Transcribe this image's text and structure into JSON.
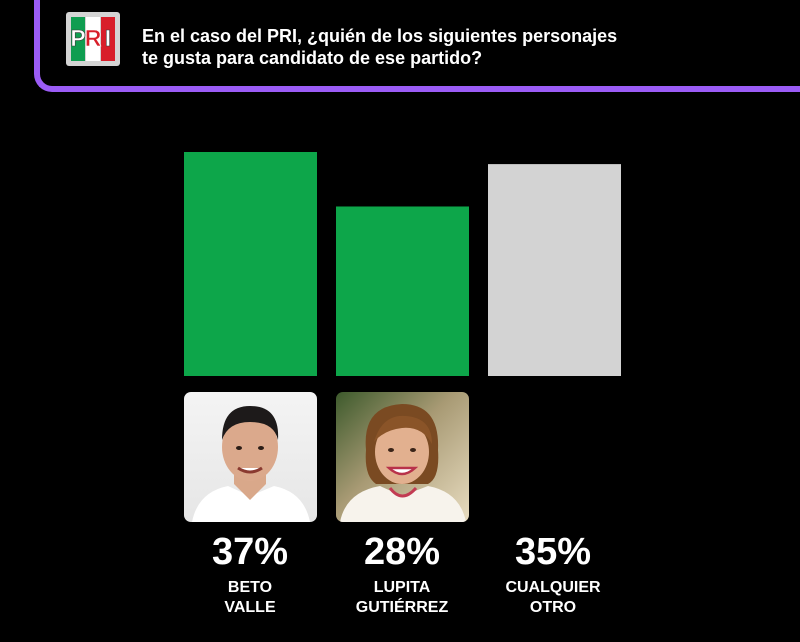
{
  "header": {
    "title_line1": "En el caso del PRI, ¿quién de los siguientes personajes",
    "title_line2": "te gusta para candidato de ese partido?",
    "logo_letters": [
      "P",
      "R",
      "I"
    ]
  },
  "colors": {
    "accent_purple": "#9b5cf6",
    "bar_green": "#0da64a",
    "bar_gray": "#d3d3d3",
    "background": "#000000"
  },
  "candidates": [
    {
      "pct": "37%",
      "name_line1": "BETO",
      "name_line2": "VALLE",
      "has_photo": true
    },
    {
      "pct": "28%",
      "name_line1": "LUPITA",
      "name_line2": "GUTIÉRREZ",
      "has_photo": true
    },
    {
      "pct": "35%",
      "name_line1": "CUALQUIER",
      "name_line2": "OTRO",
      "has_photo": false
    }
  ],
  "chart_data": {
    "type": "bar",
    "title": "En el caso del PRI, ¿quién de los siguientes personajes te gusta para candidato de ese partido?",
    "categories": [
      "BETO VALLE",
      "LUPITA GUTIÉRREZ",
      "CUALQUIER OTRO"
    ],
    "values": [
      37,
      28,
      35
    ],
    "unit": "%",
    "bar_colors": [
      "#0da64a",
      "#0da64a",
      "#d3d3d3"
    ],
    "ylim": [
      0,
      37
    ],
    "grid": false,
    "legend": "none"
  }
}
